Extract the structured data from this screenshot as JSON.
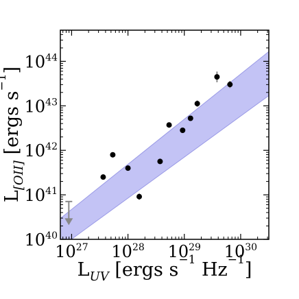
{
  "chart_data": {
    "type": "scatter",
    "title": "",
    "xlabel": {
      "parts": [
        {
          "t": "L",
          "style": "normal"
        },
        {
          "t": "UV",
          "style": "sub"
        },
        {
          "t": " [ergs s",
          "style": "normal"
        },
        {
          "t": "−1",
          "style": "sup"
        },
        {
          "t": " Hz",
          "style": "normal"
        },
        {
          "t": "−1",
          "style": "sup"
        },
        {
          "t": "]",
          "style": "normal"
        }
      ]
    },
    "ylabel": {
      "parts": [
        {
          "t": "L",
          "style": "normal"
        },
        {
          "t": "[OII]",
          "style": "sub"
        },
        {
          "t": " [ergs s",
          "style": "normal"
        },
        {
          "t": "−1",
          "style": "sup"
        },
        {
          "t": "]",
          "style": "normal"
        }
      ]
    },
    "xscale": "log",
    "yscale": "log",
    "xlim_log10": [
      26.8,
      30.5
    ],
    "ylim_log10": [
      40.0,
      44.7
    ],
    "xticks": [
      {
        "base": "10",
        "exp": "27",
        "log": 27
      },
      {
        "base": "10",
        "exp": "28",
        "log": 28
      },
      {
        "base": "10",
        "exp": "29",
        "log": 29
      },
      {
        "base": "10",
        "exp": "30",
        "log": 30
      }
    ],
    "yticks": [
      {
        "base": "10",
        "exp": "40",
        "log": 40
      },
      {
        "base": "10",
        "exp": "41",
        "log": 41
      },
      {
        "base": "10",
        "exp": "42",
        "log": 42
      },
      {
        "base": "10",
        "exp": "43",
        "log": 43
      },
      {
        "base": "10",
        "exp": "44",
        "log": 44
      }
    ],
    "grid": false,
    "legend": "none",
    "band": {
      "color": "#c3c3f5",
      "edge_color": "#9a9ae6",
      "upper": [
        [
          26.8,
          40.47
        ],
        [
          30.5,
          44.22
        ]
      ],
      "lower": [
        [
          26.8,
          39.82
        ],
        [
          30.5,
          43.23
        ]
      ]
    },
    "points": {
      "color": "#000000",
      "errcolor": "#888888",
      "log_x": [
        27.56,
        27.73,
        28.0,
        28.2,
        28.57,
        28.73,
        28.97,
        29.11,
        29.23,
        29.58,
        29.81
      ],
      "log_y": [
        41.4,
        41.9,
        41.6,
        40.96,
        41.75,
        42.57,
        42.45,
        42.72,
        43.05,
        43.65,
        43.48
      ],
      "err_log_y": [
        0.03,
        0.03,
        0.03,
        0.07,
        0.03,
        0.03,
        0.03,
        0.03,
        0.07,
        0.12,
        0.08
      ]
    },
    "upper_limits": {
      "color": "#888888",
      "log_x": [
        26.95
      ],
      "log_y": [
        40.85
      ],
      "arrow_to_log_y": [
        40.35
      ]
    }
  }
}
